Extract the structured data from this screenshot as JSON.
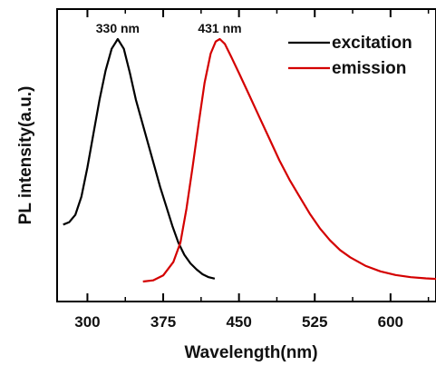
{
  "chart_data": {
    "type": "line",
    "title": "",
    "xlabel": "Wavelength(nm)",
    "ylabel": "PL intensity(a.u.)",
    "xlim": [
      270,
      645
    ],
    "ylim": [
      0,
      1.04
    ],
    "x_ticks": [
      300,
      375,
      450,
      525,
      600
    ],
    "y_ticks_shown": false,
    "grid": false,
    "legend_position": "top-right",
    "colors": {
      "excitation": "#000000",
      "emission": "#d40000"
    },
    "annotations": [
      {
        "text": "330 nm",
        "x": 330,
        "series": "excitation"
      },
      {
        "text": "431 nm",
        "x": 431,
        "series": "emission"
      }
    ],
    "series": [
      {
        "name": "excitation",
        "color": "#000000",
        "points": [
          [
            276,
            0.235
          ],
          [
            282,
            0.245
          ],
          [
            288,
            0.275
          ],
          [
            294,
            0.35
          ],
          [
            300,
            0.47
          ],
          [
            306,
            0.61
          ],
          [
            312,
            0.75
          ],
          [
            318,
            0.87
          ],
          [
            324,
            0.96
          ],
          [
            330,
            1.0
          ],
          [
            336,
            0.96
          ],
          [
            342,
            0.86
          ],
          [
            348,
            0.75
          ],
          [
            354,
            0.66
          ],
          [
            360,
            0.57
          ],
          [
            366,
            0.48
          ],
          [
            372,
            0.39
          ],
          [
            378,
            0.31
          ],
          [
            384,
            0.23
          ],
          [
            390,
            0.16
          ],
          [
            396,
            0.11
          ],
          [
            402,
            0.075
          ],
          [
            408,
            0.05
          ],
          [
            414,
            0.03
          ],
          [
            420,
            0.018
          ],
          [
            426,
            0.012
          ]
        ]
      },
      {
        "name": "emission",
        "color": "#d40000",
        "points": [
          [
            355,
            0.0
          ],
          [
            365,
            0.005
          ],
          [
            375,
            0.025
          ],
          [
            385,
            0.08
          ],
          [
            392,
            0.16
          ],
          [
            398,
            0.3
          ],
          [
            404,
            0.47
          ],
          [
            410,
            0.65
          ],
          [
            416,
            0.82
          ],
          [
            422,
            0.94
          ],
          [
            427,
            0.99
          ],
          [
            431,
            1.0
          ],
          [
            436,
            0.98
          ],
          [
            442,
            0.93
          ],
          [
            450,
            0.86
          ],
          [
            460,
            0.77
          ],
          [
            470,
            0.68
          ],
          [
            480,
            0.59
          ],
          [
            490,
            0.5
          ],
          [
            500,
            0.42
          ],
          [
            510,
            0.35
          ],
          [
            520,
            0.28
          ],
          [
            530,
            0.22
          ],
          [
            540,
            0.17
          ],
          [
            550,
            0.13
          ],
          [
            560,
            0.1
          ],
          [
            575,
            0.065
          ],
          [
            590,
            0.042
          ],
          [
            605,
            0.027
          ],
          [
            620,
            0.018
          ],
          [
            635,
            0.013
          ],
          [
            645,
            0.011
          ]
        ]
      }
    ]
  }
}
